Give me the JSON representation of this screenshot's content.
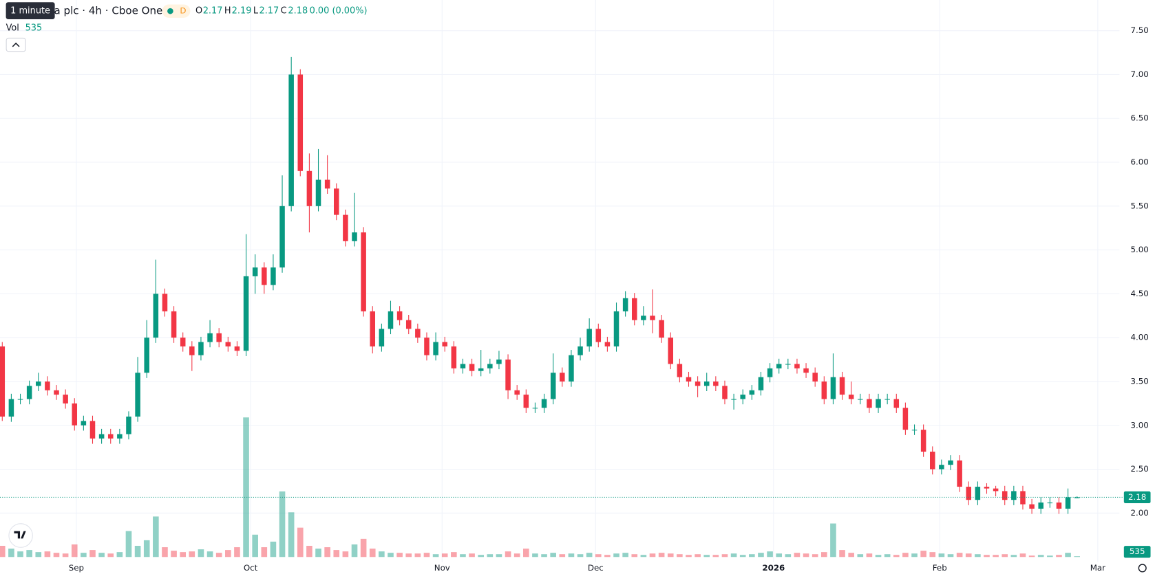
{
  "chart_data": {
    "type": "candlestick",
    "interval_tooltip": "1 minute",
    "symbol_text": "a plc · 4h · Cboe One",
    "badge": "D",
    "ohlc_labels": [
      "O",
      "H",
      "L",
      "C"
    ],
    "ohlc_values": [
      2.17,
      2.19,
      2.17,
      2.18
    ],
    "change": "0.00 (0.00%)",
    "volume_label": "Vol",
    "last_volume": 535,
    "last_price": 2.18,
    "up_color": "#089981",
    "down_color": "#f23645",
    "grid": true,
    "ylim": [
      1.44,
      7.85
    ],
    "yticks": [
      {
        "value": 2,
        "label": "2.00"
      },
      {
        "value": 2.5,
        "label": "2.50"
      },
      {
        "value": 3,
        "label": "3.00"
      },
      {
        "value": 3.5,
        "label": "3.50"
      },
      {
        "value": 4,
        "label": "4.00"
      },
      {
        "value": 4.5,
        "label": "4.50"
      },
      {
        "value": 5,
        "label": "5.00"
      },
      {
        "value": 5.5,
        "label": "5.50"
      },
      {
        "value": 6,
        "label": "6.00"
      },
      {
        "value": 6.5,
        "label": "6.50"
      },
      {
        "value": 7,
        "label": "7.00"
      },
      {
        "value": 7.5,
        "label": "7.50"
      }
    ],
    "xlim": [
      -0.25,
      123.7
    ],
    "xticks": [
      {
        "value": 8.2,
        "label": "Sep"
      },
      {
        "value": 27.5,
        "label": "Oct"
      },
      {
        "value": 48.7,
        "label": "Nov"
      },
      {
        "value": 65.7,
        "label": "Dec"
      },
      {
        "value": 85.4,
        "label": "2026"
      },
      {
        "value": 103.8,
        "label": "Feb"
      },
      {
        "value": 121.3,
        "label": "Mar"
      }
    ],
    "volume_lim": [
      0,
      106000
    ],
    "open": [
      3.9,
      3.1,
      3.3,
      3.3,
      3.45,
      3.5,
      3.4,
      3.35,
      3.25,
      3.0,
      3.05,
      2.85,
      2.9,
      2.85,
      2.9,
      3.1,
      3.6,
      4.0,
      4.5,
      4.3,
      4.0,
      3.9,
      3.8,
      3.95,
      4.05,
      3.95,
      3.9,
      3.85,
      4.7,
      4.8,
      4.6,
      4.8,
      5.5,
      7.0,
      5.9,
      5.5,
      5.8,
      5.7,
      5.4,
      5.1,
      5.2,
      4.3,
      3.9,
      4.1,
      4.3,
      4.2,
      4.1,
      4.0,
      3.8,
      3.95,
      3.9,
      3.65,
      3.7,
      3.62,
      3.65,
      3.7,
      3.75,
      3.4,
      3.35,
      3.2,
      3.2,
      3.3,
      3.6,
      3.5,
      3.8,
      3.9,
      4.1,
      3.95,
      3.9,
      4.3,
      4.45,
      4.2,
      4.25,
      4.2,
      4.0,
      3.7,
      3.55,
      3.5,
      3.45,
      3.5,
      3.45,
      3.3,
      3.3,
      3.35,
      3.4,
      3.55,
      3.65,
      3.7,
      3.7,
      3.65,
      3.6,
      3.5,
      3.3,
      3.55,
      3.35,
      3.3,
      3.3,
      3.2,
      3.3,
      3.3,
      3.2,
      2.95,
      2.95,
      2.7,
      2.5,
      2.55,
      2.6,
      2.3,
      2.15,
      2.3,
      2.28,
      2.25,
      2.15,
      2.25,
      2.1,
      2.05,
      2.12,
      2.12,
      2.05,
      2.17
    ],
    "high": [
      3.95,
      3.36,
      3.36,
      3.51,
      3.6,
      3.56,
      3.46,
      3.41,
      3.31,
      3.11,
      3.11,
      2.96,
      2.96,
      2.96,
      3.16,
      3.78,
      4.2,
      4.89,
      4.56,
      4.36,
      4.06,
      3.96,
      4.01,
      4.2,
      4.11,
      4.01,
      3.96,
      5.18,
      4.95,
      4.86,
      4.95,
      5.85,
      7.2,
      7.06,
      6.1,
      6.15,
      6.08,
      5.76,
      5.46,
      5.65,
      5.26,
      4.36,
      4.16,
      4.42,
      4.36,
      4.26,
      4.16,
      4.06,
      4.06,
      4.01,
      3.96,
      3.76,
      3.76,
      3.86,
      3.76,
      3.85,
      3.81,
      3.46,
      3.41,
      3.26,
      3.36,
      3.82,
      3.66,
      3.86,
      4.0,
      4.22,
      4.16,
      4.01,
      4.4,
      4.53,
      4.51,
      4.36,
      4.55,
      4.26,
      4.06,
      3.76,
      3.61,
      3.56,
      3.6,
      3.56,
      3.51,
      3.36,
      3.41,
      3.46,
      3.61,
      3.71,
      3.76,
      3.76,
      3.76,
      3.71,
      3.66,
      3.56,
      3.82,
      3.61,
      3.5,
      3.36,
      3.36,
      3.36,
      3.36,
      3.36,
      3.26,
      3.01,
      3.01,
      2.76,
      2.61,
      2.66,
      2.66,
      2.36,
      2.36,
      2.34,
      2.31,
      2.31,
      2.31,
      2.31,
      2.16,
      2.18,
      2.18,
      2.18,
      2.28,
      2.19
    ],
    "low": [
      3.05,
      3.04,
      3.24,
      3.24,
      3.39,
      3.34,
      3.29,
      3.19,
      2.94,
      2.94,
      2.79,
      2.79,
      2.79,
      2.79,
      2.84,
      3.04,
      3.54,
      3.94,
      4.24,
      3.94,
      3.84,
      3.62,
      3.74,
      3.89,
      3.89,
      3.84,
      3.79,
      3.79,
      4.5,
      4.5,
      4.54,
      4.74,
      5.44,
      5.84,
      5.2,
      5.44,
      5.64,
      5.34,
      5.04,
      5.04,
      4.24,
      3.82,
      3.84,
      4.04,
      4.14,
      4.04,
      3.94,
      3.74,
      3.74,
      3.84,
      3.59,
      3.59,
      3.56,
      3.56,
      3.59,
      3.64,
      3.3,
      3.29,
      3.14,
      3.14,
      3.14,
      3.24,
      3.44,
      3.44,
      3.74,
      3.84,
      3.89,
      3.84,
      3.84,
      4.24,
      4.14,
      4.14,
      4.05,
      3.94,
      3.64,
      3.49,
      3.44,
      3.32,
      3.39,
      3.39,
      3.24,
      3.18,
      3.24,
      3.29,
      3.34,
      3.49,
      3.59,
      3.64,
      3.59,
      3.54,
      3.44,
      3.24,
      3.24,
      3.29,
      3.24,
      3.24,
      3.14,
      3.14,
      3.24,
      3.14,
      2.89,
      2.89,
      2.64,
      2.44,
      2.44,
      2.49,
      2.24,
      2.09,
      2.09,
      2.22,
      2.19,
      2.09,
      2.09,
      2.04,
      1.99,
      1.99,
      2.06,
      1.99,
      1.99,
      2.17
    ],
    "close": [
      3.1,
      3.3,
      3.3,
      3.45,
      3.5,
      3.4,
      3.35,
      3.25,
      3.0,
      3.05,
      2.85,
      2.9,
      2.85,
      2.9,
      3.1,
      3.6,
      4.0,
      4.5,
      4.3,
      4.0,
      3.9,
      3.8,
      3.95,
      4.05,
      3.95,
      3.9,
      3.85,
      4.7,
      4.8,
      4.6,
      4.8,
      5.5,
      7.0,
      5.9,
      5.5,
      5.8,
      5.7,
      5.4,
      5.1,
      5.2,
      4.3,
      3.9,
      4.1,
      4.3,
      4.2,
      4.1,
      4.0,
      3.8,
      3.95,
      3.9,
      3.65,
      3.7,
      3.62,
      3.65,
      3.7,
      3.75,
      3.4,
      3.35,
      3.2,
      3.2,
      3.3,
      3.6,
      3.5,
      3.8,
      3.9,
      4.1,
      3.95,
      3.9,
      4.3,
      4.45,
      4.2,
      4.25,
      4.2,
      4.0,
      3.7,
      3.55,
      3.5,
      3.45,
      3.5,
      3.45,
      3.3,
      3.3,
      3.35,
      3.4,
      3.55,
      3.65,
      3.7,
      3.7,
      3.65,
      3.6,
      3.5,
      3.3,
      3.55,
      3.35,
      3.3,
      3.3,
      3.2,
      3.3,
      3.3,
      3.2,
      2.95,
      2.95,
      2.7,
      2.5,
      2.55,
      2.6,
      2.3,
      2.15,
      2.3,
      2.28,
      2.25,
      2.15,
      2.25,
      2.1,
      2.05,
      2.12,
      2.12,
      2.05,
      2.18,
      2.18
    ],
    "volume": [
      8000,
      6000,
      4000,
      5000,
      3500,
      4000,
      3000,
      2500,
      9000,
      3000,
      5000,
      3000,
      2500,
      3500,
      18600,
      8000,
      12000,
      29000,
      7000,
      4500,
      3500,
      4000,
      5500,
      4000,
      3000,
      5000,
      7000,
      100000,
      16000,
      7000,
      11000,
      47000,
      32000,
      21000,
      8000,
      6000,
      7000,
      5000,
      4000,
      9000,
      13000,
      6000,
      4000,
      3000,
      3000,
      2500,
      2500,
      3000,
      2000,
      2500,
      3500,
      2000,
      2500,
      1500,
      2000,
      2000,
      4000,
      2500,
      6000,
      2500,
      2000,
      3000,
      2000,
      2500,
      2000,
      3000,
      2000,
      1500,
      2500,
      3000,
      2000,
      1500,
      2500,
      3000,
      2500,
      2000,
      1500,
      2000,
      1500,
      1500,
      2000,
      2500,
      1500,
      2000,
      3000,
      4000,
      2500,
      2000,
      3000,
      2500,
      2000,
      3500,
      24000,
      5000,
      3000,
      2000,
      2500,
      1500,
      2000,
      1500,
      3000,
      2500,
      4500,
      3500,
      2500,
      2000,
      3000,
      2500,
      2000,
      1500,
      1500,
      2000,
      1500,
      2500,
      1000,
      1500,
      1000,
      1500,
      3000,
      535
    ]
  }
}
